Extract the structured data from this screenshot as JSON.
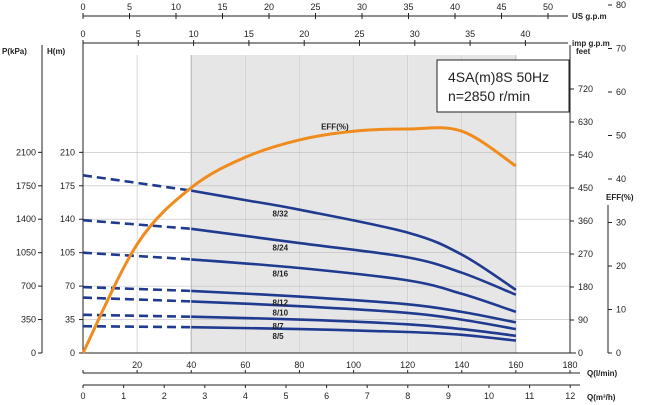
{
  "chart_data": {
    "type": "line",
    "title_lines": [
      "4SA(m)8S 50Hz",
      "n=2850 r/min"
    ],
    "colors": {
      "head": "#1f3a8f",
      "eff": "#f08c1e",
      "shade": "#e6e6e6",
      "axis": "#222222"
    },
    "axes": {
      "us_gpm": {
        "label": "US g.p.m",
        "ticks": [
          "0",
          "5",
          "10",
          "15",
          "20",
          "25",
          "30",
          "35",
          "40",
          "45",
          "50"
        ]
      },
      "imp_gpm": {
        "label": "imp g.p.m",
        "ticks": [
          "0",
          "5",
          "10",
          "15",
          "20",
          "25",
          "30",
          "35",
          "40"
        ]
      },
      "q_lmin": {
        "label": "Q(l/min)",
        "ticks": [
          "0",
          "20",
          "40",
          "60",
          "80",
          "100",
          "120",
          "140",
          "160",
          "180"
        ]
      },
      "q_m3h": {
        "label": "Q(m³/h)",
        "ticks": [
          "0",
          "1",
          "2",
          "3",
          "4",
          "5",
          "6",
          "7",
          "8",
          "9",
          "10",
          "11",
          "12"
        ]
      },
      "p_kpa": {
        "label": "P(kPa)",
        "ticks": [
          "0",
          "350",
          "700",
          "1050",
          "1400",
          "1750",
          "2100"
        ]
      },
      "h_m": {
        "label": "H(m)",
        "ticks": [
          "0",
          "35",
          "70",
          "105",
          "140",
          "175",
          "210"
        ]
      },
      "feet": {
        "label": "feet",
        "ticks": [
          "0",
          "90",
          "180",
          "270",
          "360",
          "450",
          "540",
          "630",
          "720"
        ]
      },
      "eff": {
        "label": "EFF(%)",
        "ticks": [
          "0",
          "10",
          "20",
          "30",
          "40",
          "50",
          "60",
          "70",
          "80"
        ]
      }
    },
    "xlim_lmin": [
      0,
      180
    ],
    "ylim_h": [
      0,
      230
    ],
    "operating_range_lmin": [
      40,
      160
    ],
    "series": [
      {
        "name": "8/5",
        "label_at": 40,
        "dashed": [
          [
            0,
            28
          ],
          [
            40,
            27
          ]
        ],
        "solid": [
          [
            40,
            27
          ],
          [
            80,
            25
          ],
          [
            120,
            22
          ],
          [
            140,
            19
          ],
          [
            160,
            13
          ]
        ]
      },
      {
        "name": "8/7",
        "label_at": 40,
        "dashed": [
          [
            0,
            40
          ],
          [
            40,
            38
          ]
        ],
        "solid": [
          [
            40,
            38
          ],
          [
            80,
            35
          ],
          [
            120,
            30
          ],
          [
            140,
            25
          ],
          [
            160,
            18
          ]
        ]
      },
      {
        "name": "8/10",
        "label_at": 40,
        "dashed": [
          [
            0,
            58
          ],
          [
            40,
            54
          ]
        ],
        "solid": [
          [
            40,
            54
          ],
          [
            80,
            49
          ],
          [
            120,
            42
          ],
          [
            140,
            35
          ],
          [
            160,
            25
          ]
        ]
      },
      {
        "name": "8/12",
        "label_at": 40,
        "dashed": [
          [
            0,
            69
          ],
          [
            40,
            65
          ]
        ],
        "solid": [
          [
            40,
            65
          ],
          [
            80,
            59
          ],
          [
            120,
            51
          ],
          [
            140,
            43
          ],
          [
            160,
            32
          ]
        ]
      },
      {
        "name": "8/16",
        "label_at": 40,
        "dashed": [
          [
            0,
            105
          ],
          [
            40,
            98
          ]
        ],
        "solid": [
          [
            40,
            98
          ],
          [
            80,
            89
          ],
          [
            120,
            76
          ],
          [
            140,
            62
          ],
          [
            160,
            43
          ]
        ]
      },
      {
        "name": "8/24",
        "label_at": 40,
        "dashed": [
          [
            0,
            139
          ],
          [
            40,
            130
          ]
        ],
        "solid": [
          [
            40,
            130
          ],
          [
            80,
            115
          ],
          [
            120,
            100
          ],
          [
            140,
            84
          ],
          [
            160,
            61
          ]
        ]
      },
      {
        "name": "8/32",
        "label_at": 40,
        "dashed": [
          [
            0,
            186
          ],
          [
            40,
            170
          ]
        ],
        "solid": [
          [
            40,
            170
          ],
          [
            60,
            160
          ],
          [
            80,
            150
          ],
          [
            120,
            126
          ],
          [
            140,
            103
          ],
          [
            160,
            66
          ]
        ]
      }
    ],
    "efficiency": {
      "name": "EFF(%)",
      "points": [
        [
          0,
          0
        ],
        [
          20,
          25
        ],
        [
          40,
          38
        ],
        [
          60,
          45
        ],
        [
          80,
          49
        ],
        [
          100,
          51
        ],
        [
          120,
          51.5
        ],
        [
          140,
          51
        ],
        [
          160,
          43
        ]
      ]
    }
  }
}
